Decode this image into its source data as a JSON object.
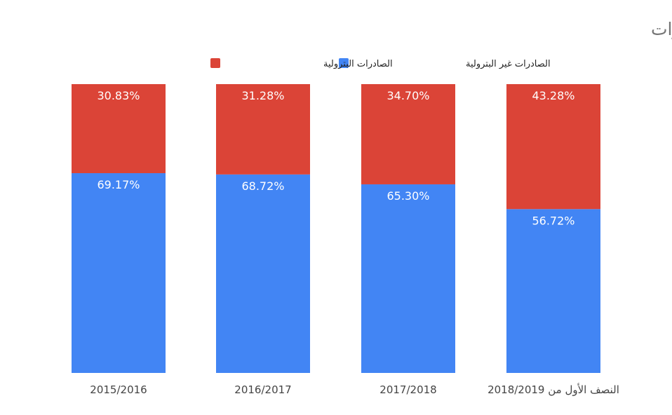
{
  "chart_data": {
    "type": "bar",
    "stacked": true,
    "percent_stacked": true,
    "title": "الصادرات البترولية وغير البترولية كنسبة إلى إجمالي الصادرات",
    "categories": [
      "2015/2016",
      "2016/2017",
      "2017/2018",
      "النصف الأول من 2018/2019"
    ],
    "series": [
      {
        "name": "الصادرات غير البترولية",
        "color": "#4285f4",
        "values": [
          69.17,
          68.72,
          65.3,
          56.72
        ],
        "labels": [
          "69.17%",
          "68.72%",
          "65.30%",
          "56.72%"
        ]
      },
      {
        "name": "الصادرات البترولية",
        "color": "#db4437",
        "values": [
          30.83,
          31.28,
          34.7,
          43.28
        ],
        "labels": [
          "30.83%",
          "31.28%",
          "34.70%",
          "43.28%"
        ]
      }
    ],
    "ylim": [
      0,
      100
    ],
    "grid": false,
    "legend_position": "top-right"
  }
}
